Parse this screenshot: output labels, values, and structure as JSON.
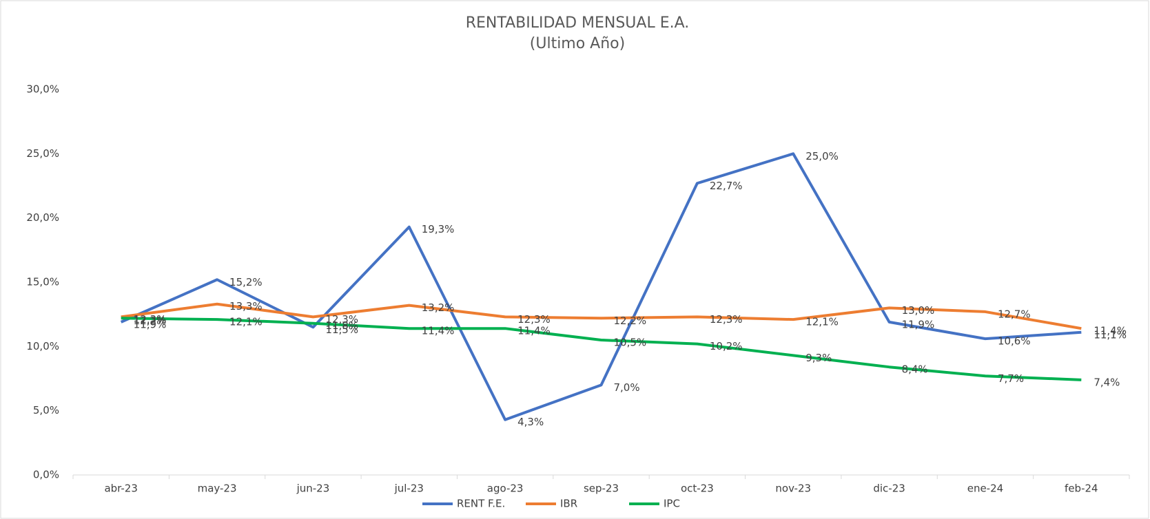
{
  "chart_data": {
    "type": "line",
    "title": "RENTABILIDAD MENSUAL E.A.",
    "subtitle": "(Ultimo Año)",
    "categories": [
      "abr-23",
      "may-23",
      "jun-23",
      "jul-23",
      "ago-23",
      "sep-23",
      "oct-23",
      "nov-23",
      "dic-23",
      "ene-24",
      "feb-24"
    ],
    "ylim": [
      0,
      30
    ],
    "yticks": [
      {
        "value": 0,
        "label": "0,0%"
      },
      {
        "value": 5,
        "label": "5,0%"
      },
      {
        "value": 10,
        "label": "10,0%"
      },
      {
        "value": 15,
        "label": "15,0%"
      },
      {
        "value": 20,
        "label": "20,0%"
      },
      {
        "value": 25,
        "label": "25,0%"
      },
      {
        "value": 30,
        "label": "30,0%"
      }
    ],
    "legend": "bottom",
    "series": [
      {
        "name": "RENT F.E.",
        "color": "#4472c4",
        "values": [
          11.9,
          15.2,
          11.5,
          19.3,
          4.3,
          7.0,
          22.7,
          25.0,
          11.9,
          10.6,
          11.1
        ],
        "value_labels": [
          "11,9%",
          "15,2%",
          "11,5%",
          "19,3%",
          "4,3%",
          "7,0%",
          "22,7%",
          "25,0%",
          "11,9%",
          "10,6%",
          "11,1%"
        ]
      },
      {
        "name": "IBR",
        "color": "#ed7d31",
        "values": [
          12.3,
          13.3,
          12.3,
          13.2,
          12.3,
          12.2,
          12.3,
          12.1,
          13.0,
          12.7,
          11.4
        ],
        "value_labels": [
          "12,3%",
          "13,3%",
          "12,3%",
          "13,2%",
          "12,3%",
          "12,2%",
          "12,3%",
          "12,1%",
          "13,0%",
          "12,7%",
          "11,4%"
        ]
      },
      {
        "name": "IPC",
        "color": "#00b050",
        "values": [
          12.2,
          12.1,
          11.8,
          11.4,
          11.4,
          10.5,
          10.2,
          9.3,
          8.4,
          7.7,
          7.4
        ],
        "value_labels": [
          "12,2%",
          "12,1%",
          "11,8%",
          "11,4%",
          "11,4%",
          "10,5%",
          "10,2%",
          "9,3%",
          "8,4%",
          "7,7%",
          "7,4%"
        ]
      }
    ]
  }
}
